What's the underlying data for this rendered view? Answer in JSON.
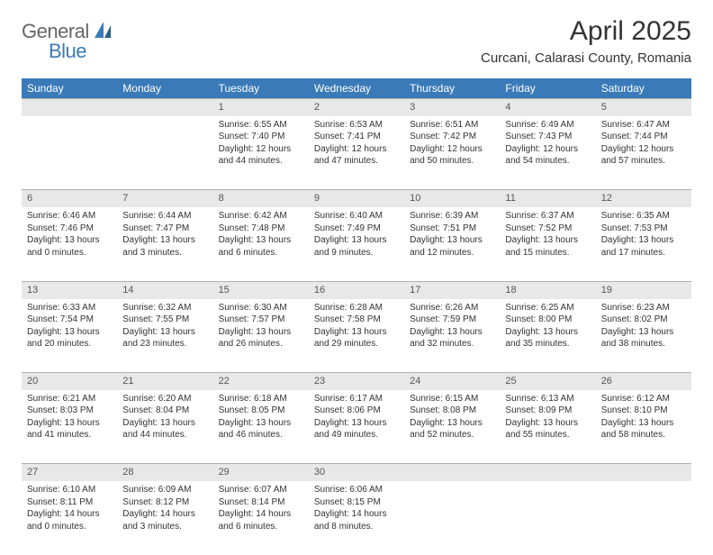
{
  "logo": {
    "general": "General",
    "blue": "Blue"
  },
  "title": "April 2025",
  "location": "Curcani, Calarasi County, Romania",
  "colors": {
    "header_bg": "#3a7ab8",
    "header_text": "#ffffff",
    "daynum_bg": "#e8e8e8",
    "daynum_border": "#b0b0b0",
    "body_text": "#333333",
    "logo_gray": "#666666",
    "logo_blue": "#3a7ab8"
  },
  "weekdays": [
    "Sunday",
    "Monday",
    "Tuesday",
    "Wednesday",
    "Thursday",
    "Friday",
    "Saturday"
  ],
  "weeks": [
    {
      "nums": [
        "",
        "",
        "1",
        "2",
        "3",
        "4",
        "5"
      ],
      "cells": [
        null,
        null,
        {
          "sunrise": "Sunrise: 6:55 AM",
          "sunset": "Sunset: 7:40 PM",
          "daylight1": "Daylight: 12 hours",
          "daylight2": "and 44 minutes."
        },
        {
          "sunrise": "Sunrise: 6:53 AM",
          "sunset": "Sunset: 7:41 PM",
          "daylight1": "Daylight: 12 hours",
          "daylight2": "and 47 minutes."
        },
        {
          "sunrise": "Sunrise: 6:51 AM",
          "sunset": "Sunset: 7:42 PM",
          "daylight1": "Daylight: 12 hours",
          "daylight2": "and 50 minutes."
        },
        {
          "sunrise": "Sunrise: 6:49 AM",
          "sunset": "Sunset: 7:43 PM",
          "daylight1": "Daylight: 12 hours",
          "daylight2": "and 54 minutes."
        },
        {
          "sunrise": "Sunrise: 6:47 AM",
          "sunset": "Sunset: 7:44 PM",
          "daylight1": "Daylight: 12 hours",
          "daylight2": "and 57 minutes."
        }
      ]
    },
    {
      "nums": [
        "6",
        "7",
        "8",
        "9",
        "10",
        "11",
        "12"
      ],
      "cells": [
        {
          "sunrise": "Sunrise: 6:46 AM",
          "sunset": "Sunset: 7:46 PM",
          "daylight1": "Daylight: 13 hours",
          "daylight2": "and 0 minutes."
        },
        {
          "sunrise": "Sunrise: 6:44 AM",
          "sunset": "Sunset: 7:47 PM",
          "daylight1": "Daylight: 13 hours",
          "daylight2": "and 3 minutes."
        },
        {
          "sunrise": "Sunrise: 6:42 AM",
          "sunset": "Sunset: 7:48 PM",
          "daylight1": "Daylight: 13 hours",
          "daylight2": "and 6 minutes."
        },
        {
          "sunrise": "Sunrise: 6:40 AM",
          "sunset": "Sunset: 7:49 PM",
          "daylight1": "Daylight: 13 hours",
          "daylight2": "and 9 minutes."
        },
        {
          "sunrise": "Sunrise: 6:39 AM",
          "sunset": "Sunset: 7:51 PM",
          "daylight1": "Daylight: 13 hours",
          "daylight2": "and 12 minutes."
        },
        {
          "sunrise": "Sunrise: 6:37 AM",
          "sunset": "Sunset: 7:52 PM",
          "daylight1": "Daylight: 13 hours",
          "daylight2": "and 15 minutes."
        },
        {
          "sunrise": "Sunrise: 6:35 AM",
          "sunset": "Sunset: 7:53 PM",
          "daylight1": "Daylight: 13 hours",
          "daylight2": "and 17 minutes."
        }
      ]
    },
    {
      "nums": [
        "13",
        "14",
        "15",
        "16",
        "17",
        "18",
        "19"
      ],
      "cells": [
        {
          "sunrise": "Sunrise: 6:33 AM",
          "sunset": "Sunset: 7:54 PM",
          "daylight1": "Daylight: 13 hours",
          "daylight2": "and 20 minutes."
        },
        {
          "sunrise": "Sunrise: 6:32 AM",
          "sunset": "Sunset: 7:55 PM",
          "daylight1": "Daylight: 13 hours",
          "daylight2": "and 23 minutes."
        },
        {
          "sunrise": "Sunrise: 6:30 AM",
          "sunset": "Sunset: 7:57 PM",
          "daylight1": "Daylight: 13 hours",
          "daylight2": "and 26 minutes."
        },
        {
          "sunrise": "Sunrise: 6:28 AM",
          "sunset": "Sunset: 7:58 PM",
          "daylight1": "Daylight: 13 hours",
          "daylight2": "and 29 minutes."
        },
        {
          "sunrise": "Sunrise: 6:26 AM",
          "sunset": "Sunset: 7:59 PM",
          "daylight1": "Daylight: 13 hours",
          "daylight2": "and 32 minutes."
        },
        {
          "sunrise": "Sunrise: 6:25 AM",
          "sunset": "Sunset: 8:00 PM",
          "daylight1": "Daylight: 13 hours",
          "daylight2": "and 35 minutes."
        },
        {
          "sunrise": "Sunrise: 6:23 AM",
          "sunset": "Sunset: 8:02 PM",
          "daylight1": "Daylight: 13 hours",
          "daylight2": "and 38 minutes."
        }
      ]
    },
    {
      "nums": [
        "20",
        "21",
        "22",
        "23",
        "24",
        "25",
        "26"
      ],
      "cells": [
        {
          "sunrise": "Sunrise: 6:21 AM",
          "sunset": "Sunset: 8:03 PM",
          "daylight1": "Daylight: 13 hours",
          "daylight2": "and 41 minutes."
        },
        {
          "sunrise": "Sunrise: 6:20 AM",
          "sunset": "Sunset: 8:04 PM",
          "daylight1": "Daylight: 13 hours",
          "daylight2": "and 44 minutes."
        },
        {
          "sunrise": "Sunrise: 6:18 AM",
          "sunset": "Sunset: 8:05 PM",
          "daylight1": "Daylight: 13 hours",
          "daylight2": "and 46 minutes."
        },
        {
          "sunrise": "Sunrise: 6:17 AM",
          "sunset": "Sunset: 8:06 PM",
          "daylight1": "Daylight: 13 hours",
          "daylight2": "and 49 minutes."
        },
        {
          "sunrise": "Sunrise: 6:15 AM",
          "sunset": "Sunset: 8:08 PM",
          "daylight1": "Daylight: 13 hours",
          "daylight2": "and 52 minutes."
        },
        {
          "sunrise": "Sunrise: 6:13 AM",
          "sunset": "Sunset: 8:09 PM",
          "daylight1": "Daylight: 13 hours",
          "daylight2": "and 55 minutes."
        },
        {
          "sunrise": "Sunrise: 6:12 AM",
          "sunset": "Sunset: 8:10 PM",
          "daylight1": "Daylight: 13 hours",
          "daylight2": "and 58 minutes."
        }
      ]
    },
    {
      "nums": [
        "27",
        "28",
        "29",
        "30",
        "",
        "",
        ""
      ],
      "cells": [
        {
          "sunrise": "Sunrise: 6:10 AM",
          "sunset": "Sunset: 8:11 PM",
          "daylight1": "Daylight: 14 hours",
          "daylight2": "and 0 minutes."
        },
        {
          "sunrise": "Sunrise: 6:09 AM",
          "sunset": "Sunset: 8:12 PM",
          "daylight1": "Daylight: 14 hours",
          "daylight2": "and 3 minutes."
        },
        {
          "sunrise": "Sunrise: 6:07 AM",
          "sunset": "Sunset: 8:14 PM",
          "daylight1": "Daylight: 14 hours",
          "daylight2": "and 6 minutes."
        },
        {
          "sunrise": "Sunrise: 6:06 AM",
          "sunset": "Sunset: 8:15 PM",
          "daylight1": "Daylight: 14 hours",
          "daylight2": "and 8 minutes."
        },
        null,
        null,
        null
      ]
    }
  ]
}
